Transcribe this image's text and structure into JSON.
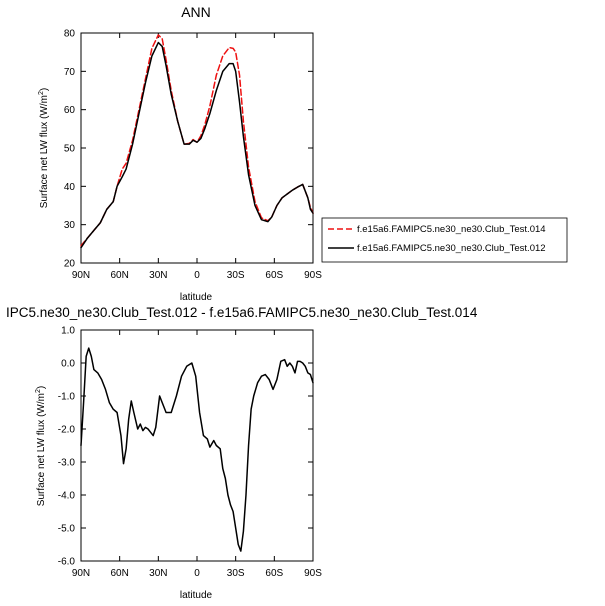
{
  "chart_data": [
    {
      "type": "line",
      "title": "ANN",
      "xlabel": "latitude",
      "ylabel": "Surface net LW flux (W/m",
      "ylabel_sup": "2",
      "ylabel_close": ")",
      "xlim": [
        90,
        -90
      ],
      "ylim": [
        20,
        80
      ],
      "xticks": [
        90,
        60,
        30,
        0,
        -30,
        -60,
        -90
      ],
      "xticklabels": [
        "90N",
        "60N",
        "30N",
        "0",
        "30S",
        "60S",
        "90S"
      ],
      "yticks": [
        20,
        30,
        40,
        50,
        60,
        70,
        80
      ],
      "yticklabels": [
        "20",
        "30",
        "40",
        "50",
        "60",
        "70",
        "80"
      ],
      "legend_placement": "right",
      "series": [
        {
          "name": "f.e15a6.FAMIPC5.ne30_ne30.Club_Test.014",
          "color": "#ee1111",
          "dash": "dashed",
          "x": [
            90,
            85,
            80,
            75,
            70,
            65,
            62,
            58,
            55,
            50,
            45,
            40,
            35,
            30,
            27,
            24,
            20,
            15,
            10,
            6,
            3,
            0,
            -3,
            -6,
            -10,
            -15,
            -20,
            -25,
            -28,
            -30,
            -33,
            -36,
            -40,
            -45,
            -50,
            -55,
            -58,
            -62,
            -66,
            -70,
            -74,
            -78,
            -82,
            -86,
            -88,
            -90
          ],
          "y": [
            24.5,
            26.5,
            28.5,
            30.5,
            34,
            36,
            40,
            44.5,
            46,
            52,
            60,
            68,
            76,
            79.5,
            78.5,
            73,
            65,
            57,
            51,
            51.2,
            52.2,
            51.5,
            53.2,
            56,
            61,
            69,
            74,
            76.2,
            76,
            75,
            69,
            57,
            45,
            36,
            31.8,
            31,
            32,
            35,
            37,
            38,
            39,
            39.8,
            40.5,
            37,
            34.5,
            33
          ]
        },
        {
          "name": "f.e15a6.FAMIPC5.ne30_ne30.Club_Test.012",
          "color": "#000000",
          "dash": "solid",
          "x": [
            90,
            85,
            80,
            75,
            70,
            65,
            62,
            58,
            55,
            50,
            45,
            40,
            35,
            30,
            27,
            24,
            20,
            15,
            10,
            6,
            3,
            0,
            -3,
            -6,
            -10,
            -15,
            -20,
            -25,
            -28,
            -30,
            -33,
            -36,
            -40,
            -45,
            -50,
            -55,
            -58,
            -62,
            -66,
            -70,
            -74,
            -78,
            -82,
            -86,
            -88,
            -90
          ],
          "y": [
            24,
            26.5,
            28.5,
            30.5,
            34,
            36,
            40,
            42.5,
            44.5,
            51,
            59,
            67,
            74,
            77.5,
            76.5,
            71.5,
            64,
            57,
            51,
            51,
            52,
            51.5,
            52.5,
            55,
            59,
            65,
            70,
            72,
            72,
            70,
            62,
            53,
            43,
            35,
            31.3,
            30.8,
            32,
            35,
            37,
            38,
            39,
            39.8,
            40.5,
            37,
            34,
            33
          ]
        }
      ]
    },
    {
      "type": "line",
      "title": "IPC5.ne30_ne30.Club_Test.012 - f.e15a6.FAMIPC5.ne30_ne30.Club_Test.014",
      "xlabel": "latitude",
      "ylabel": "Surface net LW flux (W/m",
      "ylabel_sup": "2",
      "ylabel_close": ")",
      "xlim": [
        90,
        -90
      ],
      "ylim": [
        -6.0,
        1.0
      ],
      "xticks": [
        90,
        60,
        30,
        0,
        -30,
        -60,
        -90
      ],
      "xticklabels": [
        "90N",
        "60N",
        "30N",
        "0",
        "30S",
        "60S",
        "90S"
      ],
      "yticks": [
        1,
        0,
        -1,
        -2,
        -3,
        -4,
        -5,
        -6
      ],
      "yticklabels": [
        "1.0",
        "0.0",
        "-1.0",
        "-2.0",
        "-3.0",
        "-4.0",
        "-5.0",
        "-6.0"
      ],
      "series": [
        {
          "name": "",
          "color": "#000000",
          "dash": "solid",
          "x": [
            90,
            88,
            86,
            84,
            82,
            80,
            77,
            74,
            71,
            68,
            65,
            62,
            59,
            57,
            55,
            53,
            51,
            49,
            46,
            44,
            42,
            40,
            38,
            36,
            34,
            32,
            29,
            26,
            24,
            22,
            20,
            16,
            12,
            8,
            4,
            1,
            -2,
            -5,
            -8,
            -10,
            -13,
            -15,
            -18,
            -20,
            -22,
            -24,
            -26,
            -28,
            -30,
            -32,
            -34,
            -36,
            -38,
            -40,
            -42,
            -44,
            -47,
            -50,
            -53,
            -56,
            -59,
            -62,
            -65,
            -68,
            -70,
            -72,
            -74,
            -76,
            -78,
            -80,
            -82,
            -84,
            -86,
            -88,
            -90
          ],
          "y": [
            -2.5,
            -1.2,
            0.2,
            0.45,
            0.2,
            -0.2,
            -0.3,
            -0.5,
            -0.8,
            -1.2,
            -1.4,
            -1.5,
            -2.2,
            -3.05,
            -2.6,
            -1.7,
            -1.15,
            -1.5,
            -2.0,
            -1.85,
            -2.05,
            -1.95,
            -2.0,
            -2.1,
            -2.2,
            -1.95,
            -1.0,
            -1.3,
            -1.5,
            -1.5,
            -1.5,
            -1.0,
            -0.4,
            -0.1,
            0.0,
            -0.4,
            -1.5,
            -2.2,
            -2.3,
            -2.55,
            -2.35,
            -2.5,
            -2.6,
            -3.2,
            -3.5,
            -4.0,
            -4.3,
            -4.5,
            -5.0,
            -5.5,
            -5.7,
            -5.1,
            -4.0,
            -2.5,
            -1.4,
            -1.0,
            -0.6,
            -0.4,
            -0.35,
            -0.5,
            -0.8,
            -0.5,
            0.05,
            0.1,
            -0.1,
            0.0,
            -0.1,
            -0.3,
            0.05,
            0.05,
            0.0,
            -0.1,
            -0.3,
            -0.35,
            -0.6
          ]
        }
      ]
    }
  ]
}
